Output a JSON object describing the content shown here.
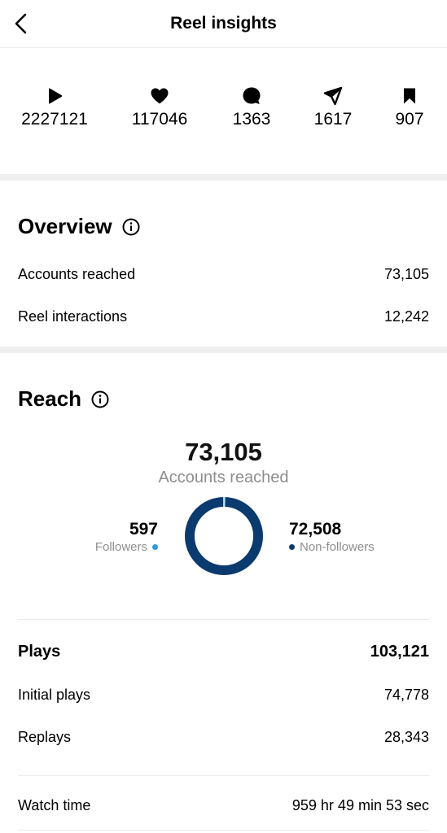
{
  "header": {
    "title": "Reel insights"
  },
  "stats": [
    {
      "icon": "play-icon",
      "value": "2227121"
    },
    {
      "icon": "heart-icon",
      "value": "117046"
    },
    {
      "icon": "comment-icon",
      "value": "1363"
    },
    {
      "icon": "share-icon",
      "value": "1617"
    },
    {
      "icon": "bookmark-icon",
      "value": "907"
    }
  ],
  "overview": {
    "title": "Overview",
    "rows": [
      {
        "label": "Accounts reached",
        "value": "73,105"
      },
      {
        "label": "Reel interactions",
        "value": "12,242"
      }
    ]
  },
  "reach": {
    "title": "Reach",
    "total": "73,105",
    "total_label": "Accounts reached",
    "followers": {
      "value": "597",
      "label": "Followers",
      "color": "#2d9cdb"
    },
    "non_followers": {
      "value": "72,508",
      "label": "Non-followers",
      "color": "#0b3a6e"
    },
    "followers_fraction": 0.0082
  },
  "plays": {
    "title": "Plays",
    "total": "103,121",
    "rows": [
      {
        "label": "Initial plays",
        "value": "74,778"
      },
      {
        "label": "Replays",
        "value": "28,343"
      }
    ]
  },
  "watch_time": {
    "label": "Watch time",
    "value": "959 hr 49 min 53 sec"
  }
}
